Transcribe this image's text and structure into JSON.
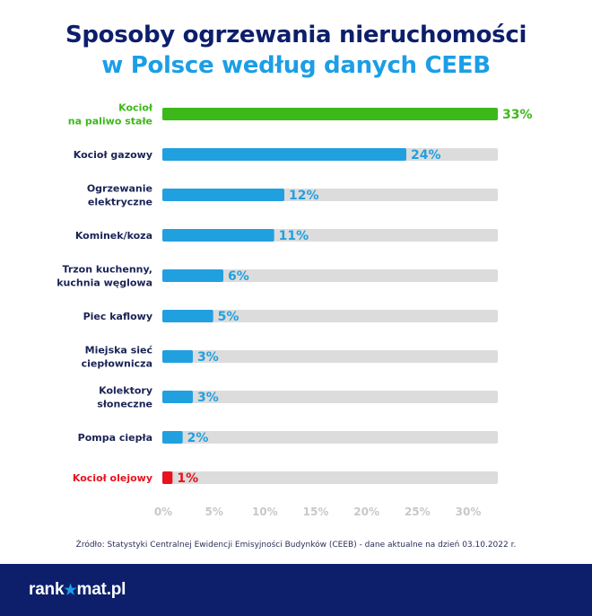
{
  "title_line1": "Sposoby ogrzewania nieruchomości",
  "title_line2": "w Polsce według danych CEEB",
  "colors": {
    "title_dark": "#0d1f6b",
    "title_accent": "#1b9ee6",
    "bar_default": "#21a0e0",
    "bar_top": "#3db81a",
    "bar_lowest": "#e8121e",
    "track": "#dcdcdc",
    "axis_tick": "#c8c8c8",
    "label_default": "#1a2355"
  },
  "chart_data": {
    "type": "bar",
    "orientation": "horizontal",
    "categories": [
      [
        "Kocioł",
        "na paliwo stałe"
      ],
      [
        "Kocioł gazowy"
      ],
      [
        "Ogrzewanie",
        "elektryczne"
      ],
      [
        "Kominek/koza"
      ],
      [
        "Trzon kuchenny,",
        "kuchnia węglowa"
      ],
      [
        "Piec kaflowy"
      ],
      [
        "Miejska sieć",
        "ciepłownicza"
      ],
      [
        "Kolektory",
        "słoneczne"
      ],
      [
        "Pompa ciepła"
      ],
      [
        "Kocioł olejowy"
      ]
    ],
    "values": [
      33,
      24,
      12,
      11,
      6,
      5,
      3,
      3,
      2,
      1
    ],
    "value_labels": [
      "33%",
      "24%",
      "12%",
      "11%",
      "6%",
      "5%",
      "3%",
      "3%",
      "2%",
      "1%"
    ],
    "highlight": {
      "0": "top",
      "9": "lowest"
    },
    "xlim": [
      0,
      33
    ],
    "x_ticks": [
      0,
      5,
      10,
      15,
      20,
      25,
      30
    ],
    "x_tick_labels": [
      "0%",
      "5%",
      "10%",
      "15%",
      "20%",
      "25%",
      "30%"
    ],
    "grid": false
  },
  "source_text": "Źródło: Statystyki Centralnej Ewidencji Emisyjności Budynków (CEEB) - dane aktualne na dzień 03.10.2022 r.",
  "logo": {
    "part1": "rank",
    "star": "★",
    "part2": "mat.pl"
  }
}
